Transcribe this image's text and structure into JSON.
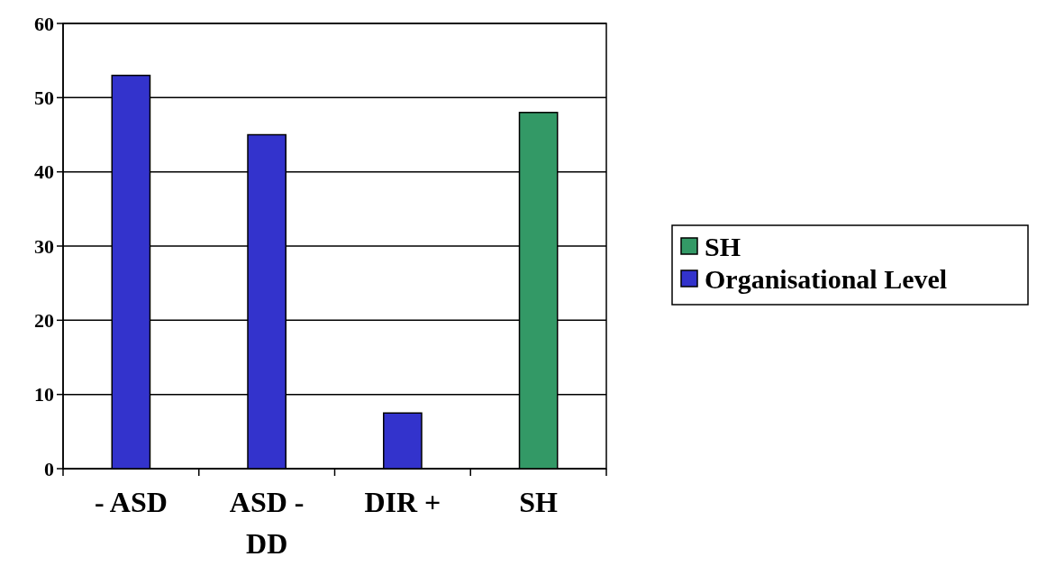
{
  "chart_data": {
    "type": "bar",
    "categories": [
      "- ASD",
      "ASD - DD",
      "DIR +",
      "SH"
    ],
    "series": [
      {
        "name": "SH",
        "color": "#339966",
        "values": [
          null,
          null,
          null,
          48
        ]
      },
      {
        "name": "Organisational Level",
        "color": "#3333cc",
        "values": [
          53,
          45,
          7.5,
          null
        ]
      }
    ],
    "ylim": [
      0,
      60
    ],
    "yticks": [
      0,
      10,
      20,
      30,
      40,
      50,
      60
    ],
    "grid": "y",
    "legend": "right"
  }
}
